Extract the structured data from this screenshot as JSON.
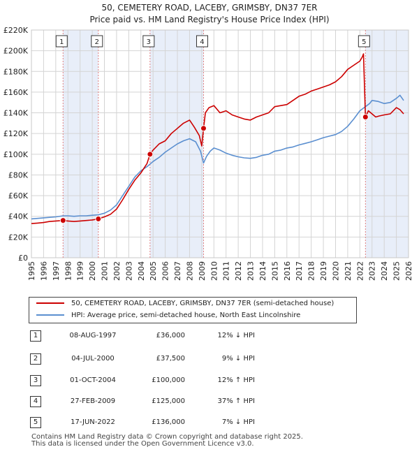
{
  "title_line1": "50, CEMETERY ROAD, LACEBY, GRIMSBY, DN37 7ER",
  "title_line2": "Price paid vs. HM Land Registry's House Price Index (HPI)",
  "colors": {
    "property": "#cc0000",
    "hpi": "#5b8fd0",
    "shade": "#e8eef9",
    "grid": "#d4d4d4",
    "marker_line": "#e08080"
  },
  "chart_data": {
    "type": "line",
    "title": "50, CEMETERY ROAD, LACEBY, GRIMSBY, DN37 7ER - Price paid vs. HM Land Registry's House Price Index (HPI)",
    "xlabel": "",
    "ylabel": "",
    "xlim": [
      1995,
      2026
    ],
    "ylim": [
      0,
      220000
    ],
    "y_ticks": [
      0,
      20000,
      40000,
      60000,
      80000,
      100000,
      120000,
      140000,
      160000,
      180000,
      200000,
      220000
    ],
    "y_tick_labels": [
      "£0",
      "£20K",
      "£40K",
      "£60K",
      "£80K",
      "£100K",
      "£120K",
      "£140K",
      "£160K",
      "£180K",
      "£200K",
      "£220K"
    ],
    "x_ticks": [
      1995,
      1996,
      1997,
      1998,
      1999,
      2000,
      2001,
      2002,
      2003,
      2004,
      2005,
      2006,
      2007,
      2008,
      2009,
      2010,
      2011,
      2012,
      2013,
      2014,
      2015,
      2016,
      2017,
      2018,
      2019,
      2020,
      2021,
      2022,
      2023,
      2024,
      2025,
      2026
    ],
    "x_tick_labels": [
      "1995",
      "1996",
      "1997",
      "1998",
      "1999",
      "2000",
      "2001",
      "2002",
      "2003",
      "2004",
      "2005",
      "2006",
      "2007",
      "2008",
      "2009",
      "2010",
      "2011",
      "2012",
      "2013",
      "2014",
      "2015",
      "2016",
      "2017",
      "2018",
      "2019",
      "2020",
      "2021",
      "2022",
      "2023",
      "2024",
      "2025",
      "2026"
    ],
    "grid": true,
    "shaded_periods": [
      [
        1997.6,
        2000.5
      ],
      [
        2004.75,
        2009.15
      ],
      [
        2022.46,
        2026
      ]
    ],
    "series": [
      {
        "name": "50, CEMETERY ROAD, LACEBY, GRIMSBY, DN37 7ER (semi-detached house)",
        "color": "#cc0000",
        "x": [
          1995.0,
          1995.5,
          1996.0,
          1996.5,
          1997.0,
          1997.6,
          1998.0,
          1998.5,
          1999.0,
          1999.5,
          2000.0,
          2000.5,
          2001.0,
          2001.5,
          2002.0,
          2002.5,
          2003.0,
          2003.5,
          2004.0,
          2004.5,
          2004.75,
          2005.0,
          2005.5,
          2006.0,
          2006.5,
          2007.0,
          2007.5,
          2008.0,
          2008.4,
          2008.8,
          2009.0,
          2009.15,
          2009.3,
          2009.6,
          2010.0,
          2010.5,
          2011.0,
          2011.5,
          2012.0,
          2012.5,
          2013.0,
          2013.5,
          2014.0,
          2014.5,
          2015.0,
          2015.5,
          2016.0,
          2016.5,
          2017.0,
          2017.5,
          2018.0,
          2018.5,
          2019.0,
          2019.5,
          2020.0,
          2020.5,
          2021.0,
          2021.5,
          2022.0,
          2022.2,
          2022.3,
          2022.46,
          2022.7,
          2023.0,
          2023.3,
          2023.6,
          2024.0,
          2024.5,
          2025.0,
          2025.3,
          2025.6
        ],
        "values": [
          33000,
          33500,
          34000,
          35000,
          35500,
          36000,
          35500,
          35000,
          35500,
          36000,
          36500,
          37500,
          39500,
          42000,
          47000,
          56000,
          66000,
          75000,
          82000,
          91000,
          100000,
          104000,
          110000,
          113000,
          120000,
          125000,
          130000,
          133000,
          126000,
          118000,
          108000,
          125000,
          140000,
          145000,
          147000,
          140000,
          142000,
          138000,
          136000,
          134000,
          133000,
          136000,
          138000,
          140000,
          146000,
          147000,
          148000,
          152000,
          156000,
          158000,
          161000,
          163000,
          165000,
          167000,
          170000,
          175000,
          182000,
          186000,
          190000,
          194000,
          197000,
          136000,
          142000,
          139000,
          136000,
          137000,
          138000,
          139000,
          145000,
          143000,
          139000
        ]
      },
      {
        "name": "HPI: Average price, semi-detached house, North East Lincolnshire",
        "color": "#5b8fd0",
        "x": [
          1995.0,
          1995.5,
          1996.0,
          1996.5,
          1997.0,
          1997.6,
          1998.0,
          1998.5,
          1999.0,
          1999.5,
          2000.0,
          2000.5,
          2001.0,
          2001.5,
          2002.0,
          2002.5,
          2003.0,
          2003.5,
          2004.0,
          2004.5,
          2005.0,
          2005.5,
          2006.0,
          2006.5,
          2007.0,
          2007.5,
          2008.0,
          2008.5,
          2008.9,
          2009.15,
          2009.4,
          2009.7,
          2010.0,
          2010.5,
          2011.0,
          2011.5,
          2012.0,
          2012.5,
          2013.0,
          2013.5,
          2014.0,
          2014.5,
          2015.0,
          2015.5,
          2016.0,
          2016.5,
          2017.0,
          2017.5,
          2018.0,
          2018.5,
          2019.0,
          2019.5,
          2020.0,
          2020.5,
          2021.0,
          2021.5,
          2022.0,
          2022.46,
          2022.8,
          2023.0,
          2023.5,
          2024.0,
          2024.5,
          2025.0,
          2025.3,
          2025.6
        ],
        "values": [
          37500,
          38000,
          38500,
          39000,
          39500,
          40500,
          40500,
          40000,
          40500,
          40500,
          41000,
          41500,
          43000,
          46000,
          51000,
          60000,
          69000,
          78000,
          84000,
          88000,
          93000,
          97000,
          102000,
          106000,
          110000,
          113000,
          115000,
          112000,
          103000,
          91500,
          98000,
          103000,
          106000,
          104000,
          101000,
          99000,
          97500,
          96500,
          96000,
          97000,
          99000,
          100000,
          103000,
          104000,
          106000,
          107000,
          109000,
          110500,
          112000,
          114000,
          116000,
          117500,
          119000,
          122000,
          127000,
          134000,
          142000,
          146000,
          149000,
          152000,
          151000,
          149000,
          150000,
          154000,
          157000,
          152000
        ]
      }
    ],
    "sale_markers": [
      {
        "label": "1",
        "x": 1997.6,
        "y": 36000
      },
      {
        "label": "2",
        "x": 2000.5,
        "y": 37500
      },
      {
        "label": "3",
        "x": 2004.75,
        "y": 100000
      },
      {
        "label": "4",
        "x": 2009.15,
        "y": 125000
      },
      {
        "label": "5",
        "x": 2022.46,
        "y": 136000
      }
    ],
    "legend_position": "bottom"
  },
  "legend": {
    "property_label": "50, CEMETERY ROAD, LACEBY, GRIMSBY, DN37 7ER (semi-detached house)",
    "hpi_label": "HPI: Average price, semi-detached house, North East Lincolnshire"
  },
  "sales": [
    {
      "num": "1",
      "date": "08-AUG-1997",
      "price": "£36,000",
      "diff": "12% ↓ HPI"
    },
    {
      "num": "2",
      "date": "04-JUL-2000",
      "price": "£37,500",
      "diff": "9% ↓ HPI"
    },
    {
      "num": "3",
      "date": "01-OCT-2004",
      "price": "£100,000",
      "diff": "12% ↑ HPI"
    },
    {
      "num": "4",
      "date": "27-FEB-2009",
      "price": "£125,000",
      "diff": "37% ↑ HPI"
    },
    {
      "num": "5",
      "date": "17-JUN-2022",
      "price": "£136,000",
      "diff": "7% ↓ HPI"
    }
  ],
  "footer": {
    "line1": "Contains HM Land Registry data © Crown copyright and database right 2025.",
    "line2": "This data is licensed under the Open Government Licence v3.0."
  }
}
